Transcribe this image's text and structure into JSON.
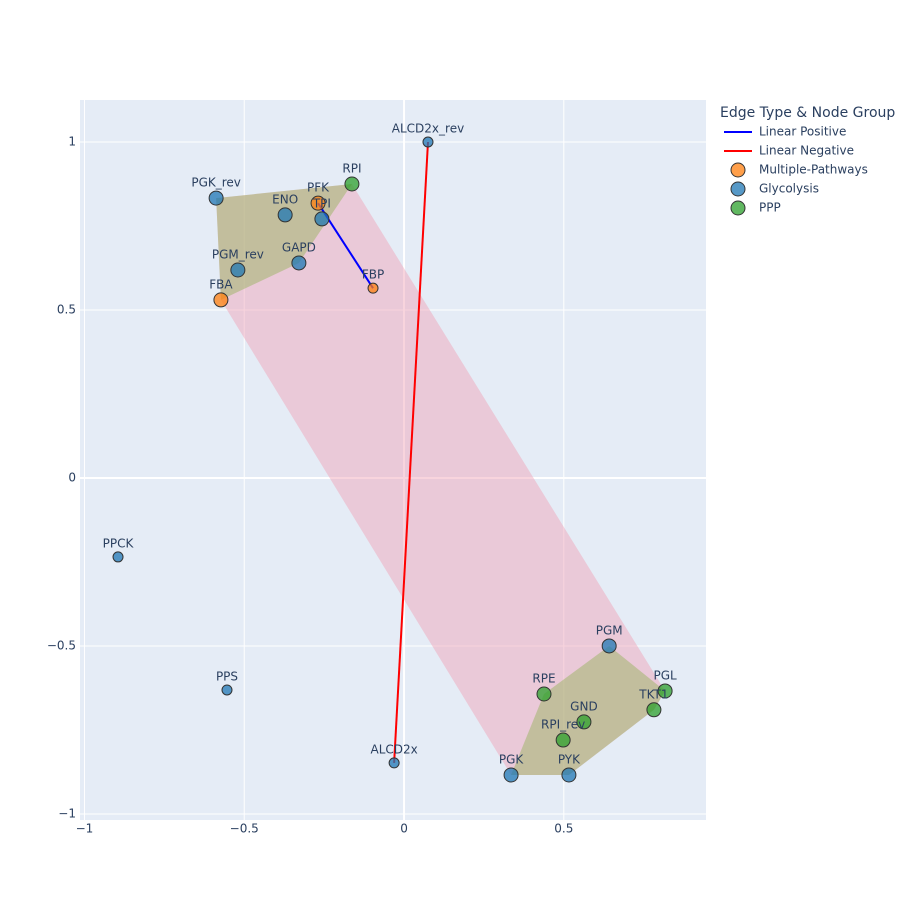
{
  "chart_data": {
    "type": "network",
    "legend_title": "Edge Type & Node Group",
    "xlim": [
      -1.014,
      0.945
    ],
    "ylim": [
      -1.018,
      1.125
    ],
    "xticks": [
      {
        "value": -1,
        "label": "−1"
      },
      {
        "value": -0.5,
        "label": "−0.5"
      },
      0,
      0.5
    ],
    "yticks": [
      {
        "value": -1,
        "label": "−1"
      },
      {
        "value": -0.5,
        "label": "−0.5"
      },
      0,
      0.5,
      1
    ],
    "grid": true,
    "edge_types": [
      {
        "name": "Linear Positive",
        "color": "#0000ff"
      },
      {
        "name": "Linear Negative",
        "color": "#ff0000"
      }
    ],
    "groups": [
      {
        "name": "Multiple-Pathways",
        "color": "#ff7f0e"
      },
      {
        "name": "Glycolysis",
        "color": "#1f77b4"
      },
      {
        "name": "PPP",
        "color": "#2ca02c"
      }
    ],
    "nodes": [
      {
        "name": "ALCD2x_rev",
        "x": 0.075,
        "y": 1.0,
        "group": "Glycolysis",
        "size": 10
      },
      {
        "name": "RPI",
        "x": -0.163,
        "y": 0.875,
        "group": "PPP",
        "size": 14
      },
      {
        "name": "PFK",
        "x": -0.269,
        "y": 0.818,
        "group": "Multiple-Pathways",
        "size": 14
      },
      {
        "name": "TPI",
        "x": -0.257,
        "y": 0.771,
        "group": "Glycolysis",
        "size": 14
      },
      {
        "name": "PGK_rev",
        "x": -0.588,
        "y": 0.833,
        "group": "Glycolysis",
        "size": 14
      },
      {
        "name": "ENO",
        "x": -0.372,
        "y": 0.783,
        "group": "Glycolysis",
        "size": 14
      },
      {
        "name": "GAPD",
        "x": -0.329,
        "y": 0.64,
        "group": "Glycolysis",
        "size": 14
      },
      {
        "name": "PGM_rev",
        "x": -0.52,
        "y": 0.619,
        "group": "Glycolysis",
        "size": 14
      },
      {
        "name": "FBA",
        "x": -0.573,
        "y": 0.53,
        "group": "Multiple-Pathways",
        "size": 14
      },
      {
        "name": "FBP",
        "x": -0.097,
        "y": 0.565,
        "group": "Multiple-Pathways",
        "size": 10
      },
      {
        "name": "PPCK",
        "x": -0.895,
        "y": -0.235,
        "group": "Glycolysis",
        "size": 10
      },
      {
        "name": "PPS",
        "x": -0.554,
        "y": -0.631,
        "group": "Glycolysis",
        "size": 10
      },
      {
        "name": "ALCD2x",
        "x": -0.031,
        "y": -0.848,
        "group": "Glycolysis",
        "size": 10
      },
      {
        "name": "PGM",
        "x": 0.642,
        "y": -0.5,
        "group": "Glycolysis",
        "size": 14
      },
      {
        "name": "PGL",
        "x": 0.817,
        "y": -0.634,
        "group": "PPP",
        "size": 14
      },
      {
        "name": "TKT1",
        "x": 0.782,
        "y": -0.69,
        "group": "PPP",
        "size": 14
      },
      {
        "name": "RPE",
        "x": 0.438,
        "y": -0.643,
        "group": "PPP",
        "size": 14
      },
      {
        "name": "GND",
        "x": 0.563,
        "y": -0.726,
        "group": "PPP",
        "size": 14
      },
      {
        "name": "RPI_rev",
        "x": 0.498,
        "y": -0.78,
        "group": "PPP",
        "size": 14
      },
      {
        "name": "PGK",
        "x": 0.335,
        "y": -0.884,
        "group": "Glycolysis",
        "size": 14
      },
      {
        "name": "PYK",
        "x": 0.516,
        "y": -0.884,
        "group": "Glycolysis",
        "size": 14
      }
    ],
    "edges": [
      {
        "source": "PFK",
        "target": "FBP",
        "type": "Linear Positive"
      },
      {
        "source": "ALCD2x_rev",
        "target": "ALCD2x",
        "type": "Linear Negative"
      }
    ],
    "clusters": [
      [
        "RPI",
        "PFK",
        "TPI",
        "PGK_rev",
        "ENO",
        "GAPD",
        "PGM_rev",
        "FBA"
      ],
      [
        "PGM",
        "PGL",
        "TKT1",
        "RPE",
        "GND",
        "RPI_rev",
        "PGK",
        "PYK"
      ]
    ],
    "cluster_color": "rgba(160,180,110,0.55)",
    "bridge_color": "rgba(240,160,180,0.45)"
  }
}
